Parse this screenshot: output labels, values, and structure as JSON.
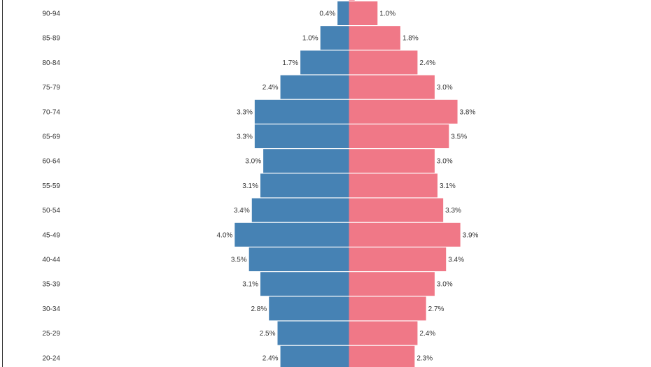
{
  "chart_data": {
    "type": "bar",
    "orientation": "horizontal",
    "layout": "population-pyramid",
    "value_format": "percent",
    "categories": [
      "90-94",
      "85-89",
      "80-84",
      "75-79",
      "70-74",
      "65-69",
      "60-64",
      "55-59",
      "50-54",
      "45-49",
      "40-44",
      "35-39",
      "30-34",
      "25-29",
      "20-24"
    ],
    "series": [
      {
        "side": "left",
        "color": "#4682b4",
        "values": [
          0.4,
          1.0,
          1.7,
          2.4,
          3.3,
          3.3,
          3.0,
          3.1,
          3.4,
          4.0,
          3.5,
          3.1,
          2.8,
          2.5,
          2.4
        ]
      },
      {
        "side": "right",
        "color": "#f07887",
        "values": [
          1.0,
          1.8,
          2.4,
          3.0,
          3.8,
          3.5,
          3.0,
          3.1,
          3.3,
          3.9,
          3.4,
          3.0,
          2.7,
          2.4,
          2.3
        ]
      }
    ],
    "partially_visible_top": {
      "right_value": 0.2
    },
    "grid": false,
    "legend": "none"
  }
}
